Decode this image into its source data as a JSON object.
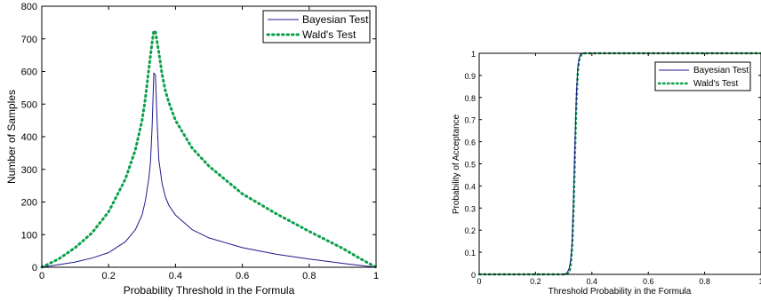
{
  "colors": {
    "bayesian": "#1f1a8c",
    "wald": "#0aa04a",
    "axis": "#000000"
  },
  "chart_data": [
    {
      "type": "line",
      "title": "",
      "xlabel": "Probability Threshold in the Formula",
      "ylabel": "Number of Samples",
      "xlim": [
        0,
        1
      ],
      "ylim": [
        0,
        800
      ],
      "xticks": [
        "0",
        "0.2",
        "0.4",
        "0.6",
        "0.8",
        "1"
      ],
      "yticks": [
        "0",
        "100",
        "200",
        "300",
        "400",
        "500",
        "600",
        "700",
        "800"
      ],
      "legend": {
        "placement": "top-right",
        "entries": [
          "Bayesian Test",
          "Wald's Test"
        ]
      },
      "series": [
        {
          "name": "Bayesian Test",
          "style": "solid",
          "x": [
            0.0,
            0.05,
            0.1,
            0.15,
            0.2,
            0.25,
            0.28,
            0.3,
            0.31,
            0.32,
            0.325,
            0.33,
            0.335,
            0.34,
            0.345,
            0.35,
            0.36,
            0.37,
            0.38,
            0.4,
            0.45,
            0.5,
            0.6,
            0.7,
            0.8,
            0.9,
            1.0
          ],
          "values": [
            0,
            8,
            16,
            28,
            45,
            78,
            115,
            160,
            205,
            270,
            320,
            430,
            595,
            590,
            450,
            330,
            255,
            215,
            190,
            160,
            115,
            90,
            60,
            40,
            25,
            12,
            0
          ]
        },
        {
          "name": "Wald's Test",
          "style": "dotted",
          "x": [
            0.0,
            0.05,
            0.1,
            0.15,
            0.2,
            0.25,
            0.28,
            0.3,
            0.31,
            0.32,
            0.33,
            0.335,
            0.34,
            0.35,
            0.36,
            0.37,
            0.38,
            0.4,
            0.45,
            0.5,
            0.6,
            0.7,
            0.8,
            0.9,
            0.95,
            1.0
          ],
          "values": [
            0,
            25,
            60,
            105,
            170,
            270,
            360,
            450,
            520,
            605,
            690,
            725,
            722,
            660,
            590,
            540,
            505,
            450,
            365,
            310,
            225,
            165,
            110,
            58,
            28,
            0
          ]
        }
      ]
    },
    {
      "type": "line",
      "title": "",
      "xlabel": "Threshold Probability in the Formula",
      "ylabel": "Probability of Acceptance",
      "xlim": [
        0,
        1
      ],
      "ylim": [
        0,
        1
      ],
      "xticks": [
        "0",
        "0.2",
        "0.4",
        "0.6",
        "0.8",
        "1"
      ],
      "yticks": [
        "0",
        "0.1",
        "0.2",
        "0.3",
        "0.4",
        "0.5",
        "0.6",
        "0.7",
        "0.8",
        "0.9",
        "1"
      ],
      "legend": {
        "placement": "top-right",
        "entries": [
          "Bayesian Test",
          "Wald's Test"
        ]
      },
      "series": [
        {
          "name": "Bayesian Test",
          "style": "solid",
          "x": [
            0.0,
            0.25,
            0.3,
            0.31,
            0.315,
            0.32,
            0.325,
            0.33,
            0.335,
            0.34,
            0.345,
            0.35,
            0.355,
            0.36,
            0.37,
            0.4,
            0.6,
            0.8,
            1.0
          ],
          "values": [
            0,
            0,
            0,
            0.005,
            0.015,
            0.03,
            0.07,
            0.15,
            0.35,
            0.6,
            0.82,
            0.94,
            0.98,
            0.995,
            1,
            1,
            1,
            1,
            1
          ]
        },
        {
          "name": "Wald's Test",
          "style": "dotted",
          "x": [
            0.0,
            0.25,
            0.3,
            0.31,
            0.32,
            0.325,
            0.33,
            0.335,
            0.34,
            0.345,
            0.35,
            0.355,
            0.36,
            0.37,
            0.4,
            0.6,
            0.8,
            1.0
          ],
          "values": [
            0,
            0,
            0,
            0,
            0.01,
            0.04,
            0.12,
            0.3,
            0.55,
            0.78,
            0.92,
            0.97,
            0.99,
            1,
            1,
            1,
            1,
            1
          ]
        }
      ]
    }
  ]
}
